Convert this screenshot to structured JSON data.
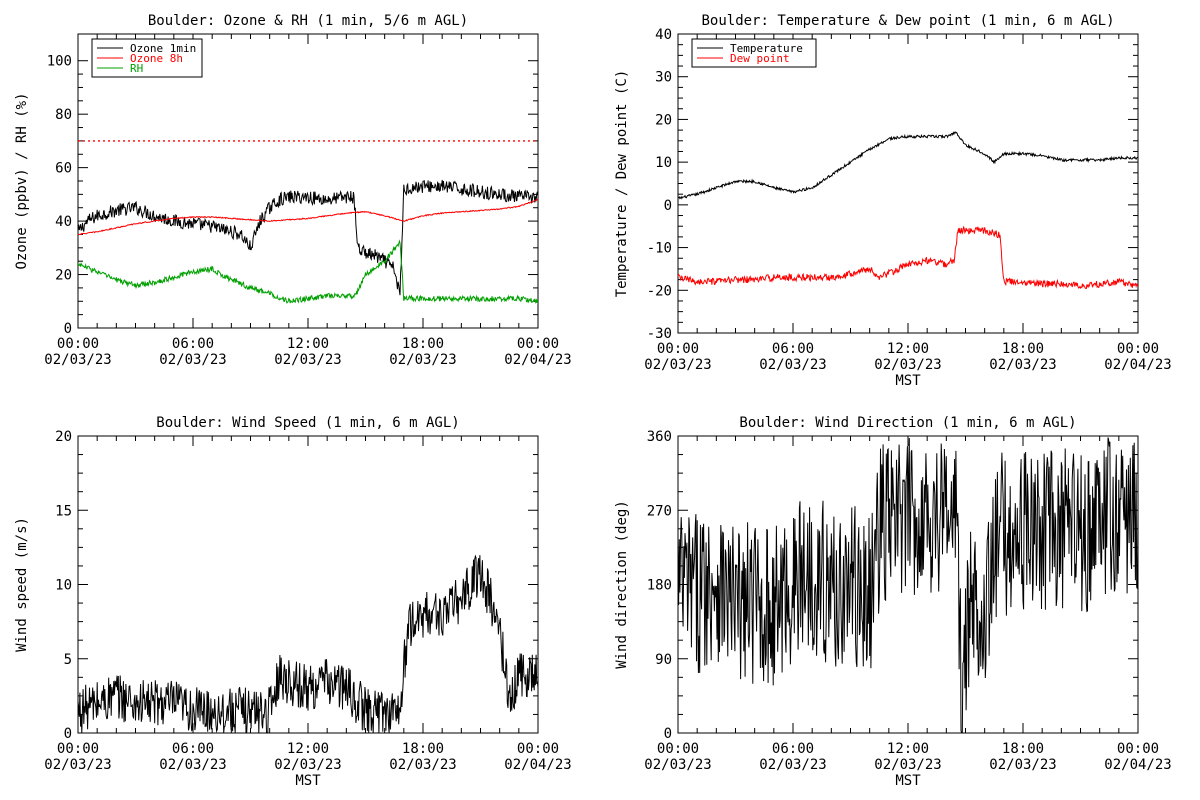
{
  "chart_data": [
    {
      "type": "line",
      "title": "Boulder: Ozone & RH (1 min, 5/6 m AGL)",
      "ylabel": "Ozone (ppbv) / RH (%)",
      "xlabel": "",
      "xlim": [
        0,
        24
      ],
      "ylim": [
        0,
        110
      ],
      "yticks": [
        0,
        20,
        40,
        60,
        80,
        100
      ],
      "xtick_times": [
        "00:00",
        "06:00",
        "12:00",
        "18:00",
        "00:00"
      ],
      "xtick_dates": [
        "02/03/23",
        "02/03/23",
        "02/03/23",
        "02/03/23",
        "02/04/23"
      ],
      "grid": false,
      "legend": "top-left",
      "reference_line": {
        "y": 70,
        "color": "#ff0000",
        "style": "dotted"
      },
      "series": [
        {
          "name": "Ozone 1min",
          "color": "#000000",
          "noise": 2.5,
          "x": [
            0,
            0.5,
            1,
            2,
            3,
            4,
            5,
            6,
            7,
            8,
            8.5,
            9,
            9.5,
            10,
            10.5,
            11,
            12,
            13,
            14,
            14.4,
            14.6,
            15,
            15.5,
            16,
            16.5,
            16.8,
            17,
            18,
            19,
            20,
            21,
            22,
            23,
            24
          ],
          "y": [
            36,
            40,
            42,
            44,
            45,
            42,
            40,
            39,
            38,
            36,
            35,
            30,
            40,
            45,
            48,
            49,
            49,
            48,
            49,
            49,
            30,
            28,
            27,
            25,
            22,
            12,
            52,
            53,
            53,
            52,
            51,
            50,
            49,
            49
          ]
        },
        {
          "name": "Ozone 8h",
          "color": "#ff0000",
          "noise": 0.2,
          "x": [
            0,
            1,
            2,
            3,
            4,
            5,
            6,
            7,
            8,
            9,
            10,
            11,
            12,
            13,
            14,
            15,
            16,
            17,
            18,
            19,
            20,
            21,
            22,
            23,
            24
          ],
          "y": [
            35,
            36,
            37.5,
            39,
            40,
            41,
            41.5,
            41.5,
            41,
            40.5,
            40,
            40.5,
            41,
            42,
            43,
            43.5,
            42,
            40,
            42,
            43,
            43.5,
            44,
            44.5,
            45.5,
            48
          ]
        },
        {
          "name": "RH",
          "color": "#00a000",
          "noise": 1.0,
          "x": [
            0,
            1,
            2,
            3,
            4,
            5,
            6,
            7,
            8,
            9,
            10,
            11,
            12,
            13,
            14,
            14.5,
            15,
            16,
            16.8,
            17,
            18,
            19,
            20,
            21,
            22,
            23,
            24
          ],
          "y": [
            24,
            21,
            18,
            16,
            17,
            19,
            21,
            22,
            18,
            15,
            13,
            10,
            11,
            12,
            12,
            12,
            20,
            25,
            32,
            11,
            11,
            11,
            11,
            11,
            11,
            11,
            10
          ]
        }
      ]
    },
    {
      "type": "line",
      "title": "Boulder: Temperature & Dew point (1 min, 6 m AGL)",
      "ylabel": "Temperature / Dew point (C)",
      "xlabel": "MST",
      "xlim": [
        0,
        24
      ],
      "ylim": [
        -30,
        40
      ],
      "yticks": [
        -30,
        -20,
        -10,
        0,
        10,
        20,
        30,
        40
      ],
      "xtick_times": [
        "00:00",
        "06:00",
        "12:00",
        "18:00",
        "00:00"
      ],
      "xtick_dates": [
        "02/03/23",
        "02/03/23",
        "02/03/23",
        "02/03/23",
        "02/04/23"
      ],
      "grid": false,
      "legend": "top-left",
      "series": [
        {
          "name": "Temperature",
          "color": "#000000",
          "noise": 0.3,
          "x": [
            0,
            1,
            2,
            3,
            4,
            5,
            6,
            7,
            8,
            9,
            10,
            11,
            12,
            13,
            14,
            14.5,
            15,
            16,
            16.5,
            17,
            18,
            19,
            20,
            21,
            22,
            23,
            24
          ],
          "y": [
            1.5,
            2.5,
            4,
            5.5,
            5.5,
            4,
            3,
            4,
            7,
            10,
            13,
            15.5,
            16,
            16,
            16,
            17,
            14,
            12,
            10,
            12,
            12,
            11.5,
            10.5,
            10.5,
            10.5,
            11,
            11
          ]
        },
        {
          "name": "Dew point",
          "color": "#ff0000",
          "noise": 0.8,
          "x": [
            0,
            1,
            2,
            3,
            4,
            5,
            6,
            7,
            8,
            9,
            10,
            10.5,
            11,
            12,
            13,
            14,
            14.4,
            14.6,
            15,
            16,
            16.8,
            17,
            18,
            19,
            20,
            21,
            22,
            23,
            24
          ],
          "y": [
            -17,
            -18,
            -18,
            -17.5,
            -17.5,
            -17,
            -17,
            -17,
            -17,
            -16,
            -15,
            -17,
            -16,
            -14,
            -13,
            -14,
            -13,
            -6,
            -6,
            -6,
            -7,
            -18,
            -18,
            -18.5,
            -18.5,
            -19,
            -18.5,
            -18,
            -19
          ]
        }
      ]
    },
    {
      "type": "line",
      "title": "Boulder: Wind Speed (1 min, 6 m AGL)",
      "ylabel": "Wind speed (m/s)",
      "xlabel": "MST",
      "xlim": [
        0,
        24
      ],
      "ylim": [
        0,
        20
      ],
      "yticks": [
        0,
        5,
        10,
        15,
        20
      ],
      "xtick_times": [
        "00:00",
        "06:00",
        "12:00",
        "18:00",
        "00:00"
      ],
      "xtick_dates": [
        "02/03/23",
        "02/03/23",
        "02/03/23",
        "02/03/23",
        "02/04/23"
      ],
      "grid": false,
      "legend": "none",
      "series": [
        {
          "name": "",
          "color": "#000000",
          "noise": 1.6,
          "x": [
            0,
            1,
            2,
            3,
            4,
            5,
            6,
            7,
            8,
            9,
            10,
            10.5,
            11,
            12,
            13,
            14,
            15,
            16,
            16.8,
            17.2,
            18,
            19,
            20,
            21,
            22,
            22.5,
            23,
            24
          ],
          "y": [
            1.5,
            2,
            2.5,
            2,
            2,
            2,
            1.5,
            1.5,
            1.5,
            1.5,
            1.5,
            4,
            3.5,
            3,
            3.5,
            3,
            1.5,
            1.5,
            1.5,
            7,
            8,
            8,
            9,
            11,
            7,
            2,
            4,
            4
          ]
        }
      ]
    },
    {
      "type": "line",
      "title": "Boulder: Wind Direction (1 min, 6 m AGL)",
      "ylabel": "Wind direction (deg)",
      "xlabel": "MST",
      "xlim": [
        0,
        24
      ],
      "ylim": [
        0,
        360
      ],
      "yticks": [
        0,
        90,
        180,
        270,
        360
      ],
      "xtick_times": [
        "00:00",
        "06:00",
        "12:00",
        "18:00",
        "00:00"
      ],
      "xtick_dates": [
        "02/03/23",
        "02/03/23",
        "02/03/23",
        "02/03/23",
        "02/04/23"
      ],
      "grid": false,
      "legend": "none",
      "series": [
        {
          "name": "",
          "color": "#000000",
          "noise": 100,
          "x": [
            0,
            1,
            2,
            3,
            4,
            5,
            6,
            7,
            8,
            9,
            10,
            10.5,
            11,
            12,
            13,
            14,
            14.5,
            14.8,
            15.2,
            16,
            16.5,
            16.8,
            17,
            18,
            19,
            20,
            21,
            22,
            22.5,
            23,
            24
          ],
          "y": [
            180,
            170,
            190,
            150,
            160,
            150,
            180,
            200,
            170,
            180,
            160,
            250,
            255,
            260,
            265,
            270,
            270,
            40,
            150,
            160,
            200,
            250,
            240,
            245,
            245,
            245,
            245,
            250,
            265,
            260,
            265
          ]
        }
      ]
    }
  ]
}
